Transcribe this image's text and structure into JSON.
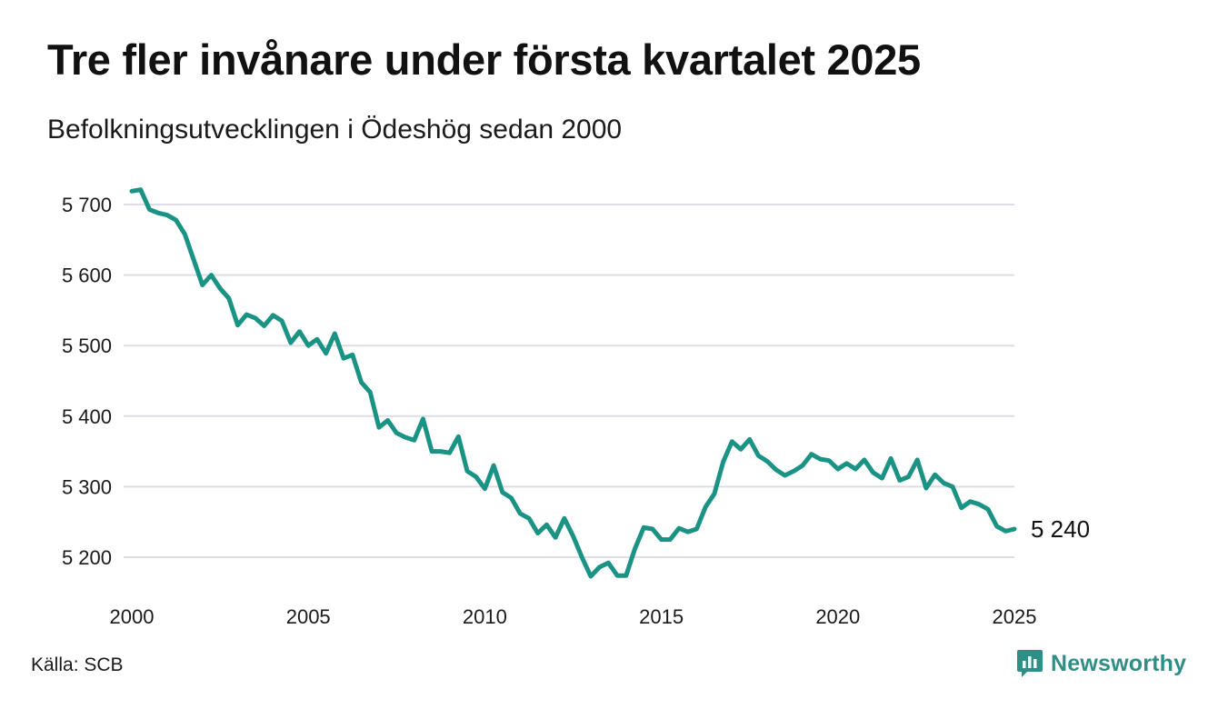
{
  "title": "Tre fler invånare under första kvartalet 2025",
  "subtitle": "Befolkningsutvecklingen i Ödeshög sedan 2000",
  "source": "Källa: SCB",
  "brand": {
    "name": "Newsworthy",
    "icon": "newsworthy-logo-icon",
    "color": "#2f8f86"
  },
  "colors": {
    "line": "#1a9384",
    "grid": "#dddde6"
  },
  "chart_data": {
    "type": "line",
    "title": "Tre fler invånare under första kvartalet 2025",
    "subtitle": "Befolkningsutvecklingen i Ödeshög sedan 2000",
    "xlabel": "",
    "ylabel": "",
    "x_start": 2000.0,
    "x_step": 0.25,
    "xlim": [
      2000,
      2025
    ],
    "ylim": [
      5170,
      5725
    ],
    "x_ticks": [
      2000,
      2005,
      2010,
      2015,
      2020,
      2025
    ],
    "x_tick_labels": [
      "2000",
      "2005",
      "2010",
      "2015",
      "2020",
      "2025"
    ],
    "y_ticks": [
      5200,
      5300,
      5400,
      5500,
      5600,
      5700
    ],
    "y_tick_labels": [
      "5 200",
      "5 300",
      "5 400",
      "5 500",
      "5 600",
      "5 700"
    ],
    "grid": true,
    "end_label": "5 240",
    "values": [
      5719,
      5721,
      5693,
      5688,
      5685,
      5678,
      5658,
      5622,
      5586,
      5600,
      5581,
      5567,
      5529,
      5544,
      5539,
      5528,
      5543,
      5535,
      5504,
      5520,
      5500,
      5509,
      5489,
      5517,
      5482,
      5487,
      5448,
      5434,
      5384,
      5394,
      5376,
      5370,
      5366,
      5396,
      5350,
      5350,
      5348,
      5371,
      5322,
      5314,
      5297,
      5330,
      5292,
      5284,
      5262,
      5255,
      5234,
      5246,
      5228,
      5255,
      5230,
      5200,
      5173,
      5186,
      5192,
      5174,
      5174,
      5212,
      5242,
      5240,
      5225,
      5225,
      5241,
      5236,
      5240,
      5271,
      5290,
      5335,
      5364,
      5353,
      5367,
      5344,
      5336,
      5324,
      5316,
      5322,
      5330,
      5346,
      5339,
      5337,
      5325,
      5333,
      5325,
      5338,
      5320,
      5312,
      5340,
      5309,
      5314,
      5338,
      5298,
      5317,
      5305,
      5300,
      5270,
      5279,
      5275,
      5268,
      5244,
      5237,
      5240
    ]
  }
}
